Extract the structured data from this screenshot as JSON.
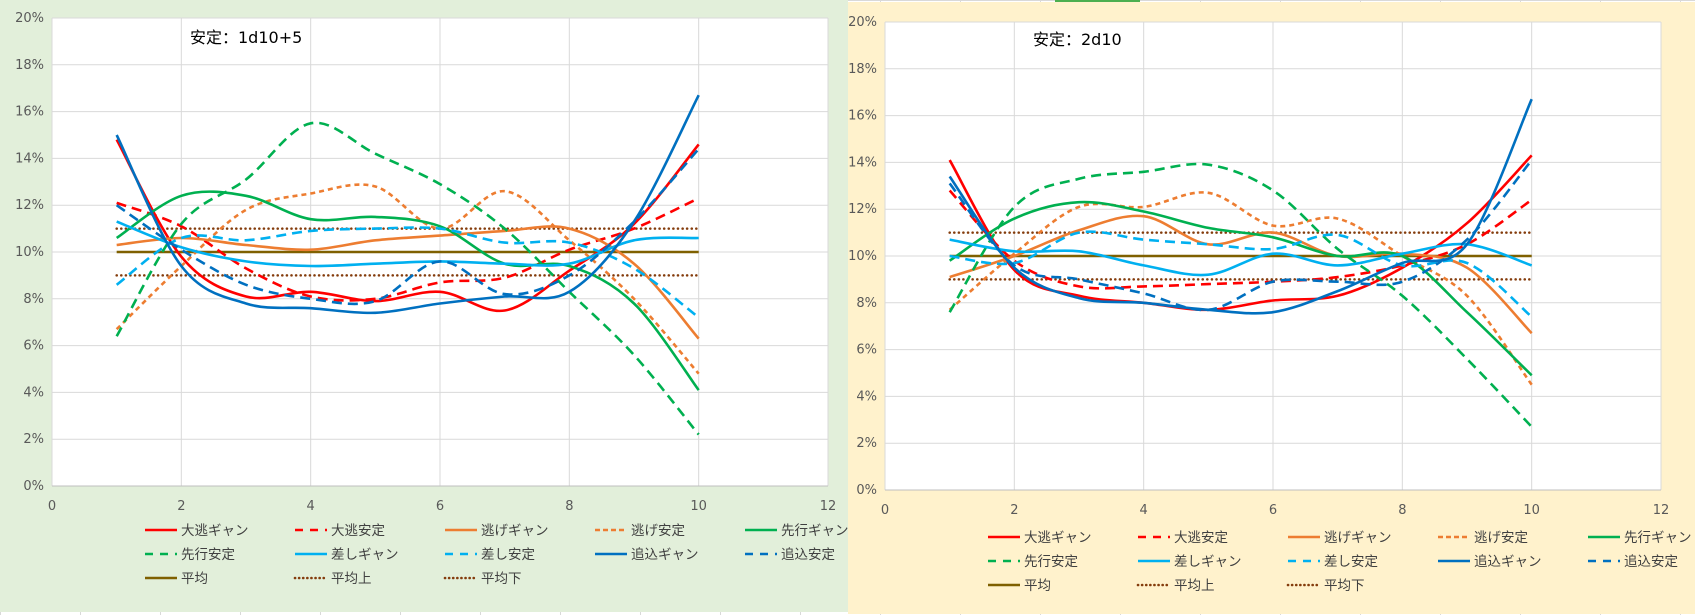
{
  "app": "spreadsheet",
  "chart_data": [
    {
      "type": "line",
      "title": "安定：1d10+5",
      "xlabel": "",
      "ylabel": "",
      "xlim": [
        0,
        12
      ],
      "ylim": [
        0,
        0.2
      ],
      "x_ticks": [
        "0",
        "2",
        "4",
        "6",
        "8",
        "10",
        "12"
      ],
      "y_ticks": [
        "0%",
        "2%",
        "4%",
        "6%",
        "8%",
        "10%",
        "12%",
        "14%",
        "16%",
        "18%",
        "20%"
      ],
      "grid": true,
      "legend": "bottom",
      "smoothed": true,
      "x": [
        1,
        2,
        3,
        4,
        5,
        6,
        7,
        8,
        9,
        10
      ],
      "series": [
        {
          "name": "大逃ギャン",
          "color": "#ff0000",
          "dash": "solid",
          "values": [
            0.148,
            0.098,
            0.081,
            0.083,
            0.079,
            0.083,
            0.075,
            0.092,
            0.112,
            0.146
          ]
        },
        {
          "name": "大逃安定",
          "color": "#ff0000",
          "dash": "dash",
          "values": [
            0.121,
            0.111,
            0.093,
            0.081,
            0.08,
            0.087,
            0.089,
            0.101,
            0.11,
            0.123
          ]
        },
        {
          "name": "逃げギャン",
          "color": "#ed7d31",
          "dash": "solid",
          "values": [
            0.103,
            0.106,
            0.103,
            0.101,
            0.105,
            0.107,
            0.109,
            0.11,
            0.095,
            0.063
          ]
        },
        {
          "name": "逃げ安定",
          "color": "#ed7d31",
          "dash": "shortdash",
          "values": [
            0.067,
            0.094,
            0.118,
            0.125,
            0.128,
            0.11,
            0.126,
            0.105,
            0.08,
            0.048
          ]
        },
        {
          "name": "先行ギャン",
          "color": "#00b050",
          "dash": "solid",
          "values": [
            0.106,
            0.124,
            0.124,
            0.114,
            0.115,
            0.111,
            0.095,
            0.094,
            0.078,
            0.041
          ]
        },
        {
          "name": "先行安定",
          "color": "#00b050",
          "dash": "dash",
          "values": [
            0.064,
            0.112,
            0.131,
            0.155,
            0.142,
            0.129,
            0.11,
            0.083,
            0.056,
            0.022
          ]
        },
        {
          "name": "差しギャン",
          "color": "#00b0f0",
          "dash": "solid",
          "values": [
            0.113,
            0.102,
            0.096,
            0.094,
            0.095,
            0.096,
            0.095,
            0.095,
            0.105,
            0.106
          ]
        },
        {
          "name": "差し安定",
          "color": "#00b0f0",
          "dash": "dash",
          "values": [
            0.086,
            0.106,
            0.105,
            0.109,
            0.11,
            0.11,
            0.104,
            0.104,
            0.093,
            0.072
          ]
        },
        {
          "name": "追込ギャン",
          "color": "#0070c0",
          "dash": "solid",
          "values": [
            0.15,
            0.094,
            0.078,
            0.076,
            0.074,
            0.078,
            0.081,
            0.083,
            0.113,
            0.167
          ]
        },
        {
          "name": "追込安定",
          "color": "#0070c0",
          "dash": "dash",
          "values": [
            0.12,
            0.101,
            0.086,
            0.08,
            0.079,
            0.096,
            0.082,
            0.09,
            0.113,
            0.144
          ]
        },
        {
          "name": "平均",
          "color": "#7f6000",
          "dash": "solid",
          "values": [
            0.1,
            0.1,
            0.1,
            0.1,
            0.1,
            0.1,
            0.1,
            0.1,
            0.1,
            0.1
          ]
        },
        {
          "name": "平均上",
          "color": "#843c0c",
          "dash": "dot",
          "values": [
            0.11,
            0.11,
            0.11,
            0.11,
            0.11,
            0.11,
            0.11,
            0.11,
            0.11,
            0.11
          ]
        },
        {
          "name": "平均下",
          "color": "#843c0c",
          "dash": "dot",
          "values": [
            0.09,
            0.09,
            0.09,
            0.09,
            0.09,
            0.09,
            0.09,
            0.09,
            0.09,
            0.09
          ]
        }
      ]
    },
    {
      "type": "line",
      "title": "安定：2d10",
      "xlabel": "",
      "ylabel": "",
      "xlim": [
        0,
        12
      ],
      "ylim": [
        0,
        0.2
      ],
      "x_ticks": [
        "0",
        "2",
        "4",
        "6",
        "8",
        "10",
        "12"
      ],
      "y_ticks": [
        "0%",
        "2%",
        "4%",
        "6%",
        "8%",
        "10%",
        "12%",
        "14%",
        "16%",
        "18%",
        "20%"
      ],
      "grid": true,
      "legend": "bottom",
      "smoothed": true,
      "x": [
        1,
        2,
        3,
        4,
        5,
        6,
        7,
        8,
        9,
        10
      ],
      "series": [
        {
          "name": "大逃ギャン",
          "color": "#ff0000",
          "dash": "solid",
          "values": [
            0.141,
            0.094,
            0.083,
            0.08,
            0.077,
            0.081,
            0.083,
            0.095,
            0.114,
            0.143
          ]
        },
        {
          "name": "大逃安定",
          "color": "#ff0000",
          "dash": "dash",
          "values": [
            0.128,
            0.098,
            0.087,
            0.087,
            0.088,
            0.089,
            0.091,
            0.096,
            0.105,
            0.124
          ]
        },
        {
          "name": "逃げギャン",
          "color": "#ed7d31",
          "dash": "solid",
          "values": [
            0.091,
            0.1,
            0.111,
            0.117,
            0.105,
            0.11,
            0.1,
            0.101,
            0.095,
            0.067
          ]
        },
        {
          "name": "逃げ安定",
          "color": "#ed7d31",
          "dash": "shortdash",
          "values": [
            0.077,
            0.101,
            0.121,
            0.121,
            0.127,
            0.113,
            0.116,
            0.1,
            0.083,
            0.045
          ]
        },
        {
          "name": "先行ギャン",
          "color": "#00b050",
          "dash": "solid",
          "values": [
            0.098,
            0.116,
            0.123,
            0.119,
            0.112,
            0.108,
            0.1,
            0.1,
            0.076,
            0.049
          ]
        },
        {
          "name": "先行安定",
          "color": "#00b050",
          "dash": "dash",
          "values": [
            0.076,
            0.121,
            0.133,
            0.136,
            0.139,
            0.128,
            0.103,
            0.083,
            0.056,
            0.027
          ]
        },
        {
          "name": "差しギャン",
          "color": "#00b0f0",
          "dash": "solid",
          "values": [
            0.107,
            0.102,
            0.102,
            0.096,
            0.092,
            0.101,
            0.096,
            0.101,
            0.105,
            0.096
          ]
        },
        {
          "name": "差し安定",
          "color": "#00b0f0",
          "dash": "dash",
          "values": [
            0.1,
            0.097,
            0.11,
            0.107,
            0.105,
            0.103,
            0.109,
            0.096,
            0.097,
            0.074
          ]
        },
        {
          "name": "追込ギャン",
          "color": "#0070c0",
          "dash": "solid",
          "values": [
            0.134,
            0.095,
            0.082,
            0.08,
            0.077,
            0.076,
            0.085,
            0.097,
            0.105,
            0.167
          ]
        },
        {
          "name": "追込安定",
          "color": "#0070c0",
          "dash": "dash",
          "values": [
            0.131,
            0.096,
            0.09,
            0.084,
            0.077,
            0.089,
            0.089,
            0.089,
            0.107,
            0.141
          ]
        },
        {
          "name": "平均",
          "color": "#7f6000",
          "dash": "solid",
          "values": [
            0.1,
            0.1,
            0.1,
            0.1,
            0.1,
            0.1,
            0.1,
            0.1,
            0.1,
            0.1
          ]
        },
        {
          "name": "平均上",
          "color": "#843c0c",
          "dash": "dot",
          "values": [
            0.11,
            0.11,
            0.11,
            0.11,
            0.11,
            0.11,
            0.11,
            0.11,
            0.11,
            0.11
          ]
        },
        {
          "name": "平均下",
          "color": "#843c0c",
          "dash": "dot",
          "values": [
            0.09,
            0.09,
            0.09,
            0.09,
            0.09,
            0.09,
            0.09,
            0.09,
            0.09,
            0.09
          ]
        }
      ]
    }
  ]
}
